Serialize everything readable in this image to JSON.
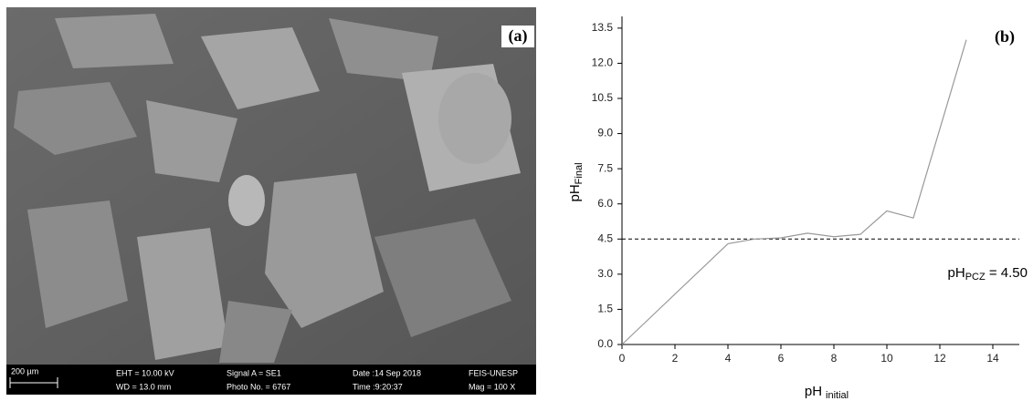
{
  "image_panel": {
    "panel_label": "(a)",
    "scale_bar": "200 µm",
    "info": [
      "EHT = 10.00 kV",
      "WD = 13.0 mm",
      "Signal A = SE1",
      "Photo No. = 6767",
      "Date :14 Sep 2018",
      "Time :9:20:37",
      "FEIS-UNESP",
      "Mag =    100 X"
    ]
  },
  "chart_data": {
    "type": "line",
    "panel_label": "(b)",
    "x_label": {
      "main": "pH",
      "sub": "initial"
    },
    "y_label": {
      "main": "pH",
      "sub": "Final"
    },
    "x": [
      0,
      4,
      5,
      6,
      7,
      8,
      9,
      10,
      11,
      13
    ],
    "values": [
      0,
      4.3,
      4.5,
      4.55,
      4.75,
      4.6,
      4.7,
      5.7,
      5.4,
      13.0
    ],
    "color": "#999999",
    "xlim": [
      0,
      15
    ],
    "ylim": [
      0,
      14
    ],
    "xticks": [
      0,
      2,
      4,
      6,
      8,
      10,
      12,
      14
    ],
    "yticks": [
      {
        "value": 0,
        "label": "0.0"
      },
      1.5,
      {
        "value": 3,
        "label": "3.0"
      },
      4.5,
      {
        "value": 6,
        "label": "6.0"
      },
      7.5,
      {
        "value": 9,
        "label": "9.0"
      },
      10.5,
      {
        "value": 12,
        "label": "12.0"
      },
      13.5
    ],
    "reference_line": {
      "value": 4.5,
      "label_main": "pH",
      "label_sub": "PCZ",
      "label_rest": " = 4.50"
    }
  }
}
